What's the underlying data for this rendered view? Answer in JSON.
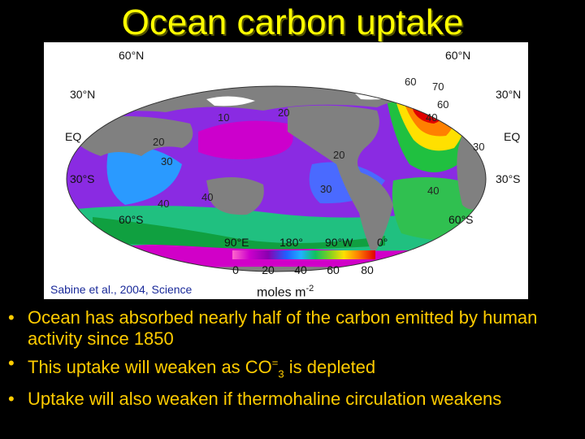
{
  "title": "Ocean carbon uptake",
  "map": {
    "lat_labels_left": [
      "60°N",
      "30°N",
      "EQ",
      "30°S",
      "60°S"
    ],
    "lat_labels_right": [
      "60°N",
      "30°N",
      "EQ",
      "30°S",
      "60°S"
    ],
    "lon_labels": [
      "90°E",
      "180°",
      "90°W",
      "0°"
    ],
    "contour_labels": [
      "60",
      "70",
      "60",
      "40",
      "20",
      "10",
      "20",
      "30",
      "20",
      "30",
      "30",
      "40",
      "40",
      "40"
    ],
    "colorbar": {
      "ticks": [
        "0",
        "20",
        "40",
        "60",
        "80"
      ],
      "units_base": "moles m",
      "units_exp": "-2",
      "colors": [
        "#ff66cc",
        "#cc00cc",
        "#8a00b0",
        "#2060ff",
        "#20b0ff",
        "#10c060",
        "#80d020",
        "#ffe000",
        "#ff8000",
        "#e00000"
      ]
    },
    "citation": "Sabine et al., 2004, Science",
    "colors": {
      "land": "#808080",
      "ocean_background": "#8a2be2",
      "sea_ice": "#ffffff"
    }
  },
  "bullets": [
    {
      "text": "Ocean has absorbed nearly half of the carbon emitted by human activity since 1850"
    },
    {
      "pre": "This uptake will weaken as CO",
      "sup": "=",
      "sub": "3",
      "post": " is depleted"
    },
    {
      "text": "Uptake will also weaken if thermohaline circulation weakens"
    }
  ],
  "bullet_symbol": "•",
  "colors": {
    "title": "#ffff00",
    "bullets": "#ffcc00",
    "background": "#000000"
  }
}
